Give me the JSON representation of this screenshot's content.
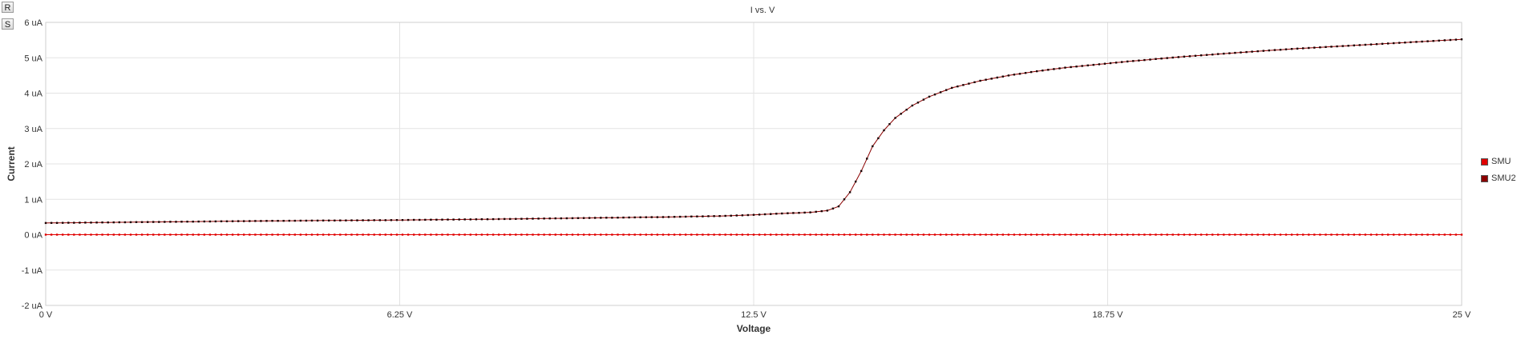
{
  "toolbar": {
    "reset_label": "R",
    "settings_label": "S"
  },
  "chart_data": {
    "type": "line",
    "title": "I vs. V",
    "xlabel": "Voltage",
    "ylabel": "Current",
    "xlim": [
      0,
      25
    ],
    "ylim": [
      -2,
      6
    ],
    "xticks": [
      {
        "value": 0,
        "label": "0 V"
      },
      {
        "value": 6.25,
        "label": "6.25 V"
      },
      {
        "value": 12.5,
        "label": "12.5 V"
      },
      {
        "value": 18.75,
        "label": "18.75 V"
      },
      {
        "value": 25,
        "label": "25 V"
      }
    ],
    "yticks": [
      {
        "value": 6,
        "label": "6 uA"
      },
      {
        "value": 5,
        "label": "5 uA"
      },
      {
        "value": 4,
        "label": "4 uA"
      },
      {
        "value": 3,
        "label": "3 uA"
      },
      {
        "value": 2,
        "label": "2 uA"
      },
      {
        "value": 1,
        "label": "1 uA"
      },
      {
        "value": 0,
        "label": "0 uA"
      },
      {
        "value": -1,
        "label": "-1 uA"
      },
      {
        "value": -2,
        "label": "-2 uA"
      }
    ],
    "grid": true,
    "legend_position": "right",
    "series": [
      {
        "name": "SMU",
        "color": "#e00000",
        "x": [
          0,
          1,
          2,
          3,
          4,
          5,
          6,
          7,
          8,
          9,
          10,
          11,
          12,
          13,
          14,
          15,
          16,
          17,
          18,
          19,
          20,
          21,
          22,
          23,
          24,
          25
        ],
        "y": [
          0,
          0,
          0,
          0,
          0,
          0,
          0,
          0,
          0,
          0,
          0,
          0,
          0,
          0,
          0,
          0,
          0,
          0,
          0,
          0,
          0,
          0,
          0,
          0,
          0,
          0
        ]
      },
      {
        "name": "SMU2",
        "color": "#8b0000",
        "x": [
          0,
          2,
          4,
          6,
          8,
          10,
          11,
          12,
          12.5,
          13,
          13.5,
          13.8,
          14,
          14.2,
          14.4,
          14.6,
          14.8,
          15,
          15.3,
          15.6,
          16,
          16.5,
          17,
          17.5,
          18,
          19,
          20,
          21,
          22,
          23,
          24,
          25
        ],
        "y": [
          0.33,
          0.36,
          0.39,
          0.41,
          0.44,
          0.48,
          0.5,
          0.53,
          0.56,
          0.6,
          0.63,
          0.68,
          0.8,
          1.2,
          1.8,
          2.5,
          2.95,
          3.3,
          3.65,
          3.9,
          4.15,
          4.35,
          4.5,
          4.62,
          4.72,
          4.88,
          5.02,
          5.14,
          5.25,
          5.34,
          5.43,
          5.52
        ]
      }
    ]
  }
}
